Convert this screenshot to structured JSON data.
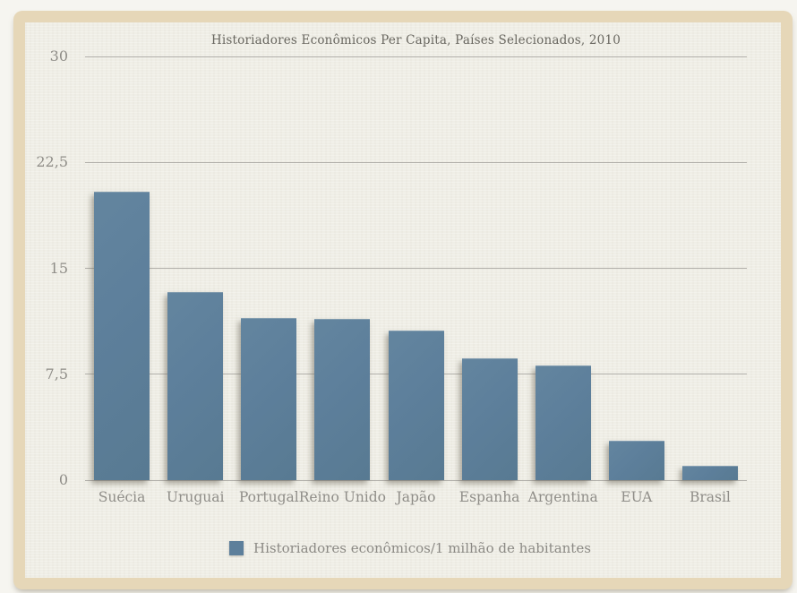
{
  "chart_data": {
    "type": "bar",
    "title": "Historiadores Econômicos Per Capita, Países Selecionados, 2010",
    "categories": [
      "Suécia",
      "Uruguai",
      "Portugal",
      "Reino Unido",
      "Japão",
      "Espanha",
      "Argentina",
      "EUA",
      "Brasil"
    ],
    "values": [
      20.4,
      13.3,
      11.5,
      11.4,
      10.6,
      8.6,
      8.1,
      2.8,
      1.0
    ],
    "series_name": "Historiadores econômicos/1 milhão de habitantes",
    "xlabel": "",
    "ylabel": "",
    "ylim": [
      0,
      30
    ],
    "yticks": [
      0,
      7.5,
      15,
      22.5,
      30
    ],
    "ytick_labels": [
      "0",
      "7,5",
      "15",
      "22,5",
      "30"
    ],
    "grid": true,
    "legend_position": "bottom",
    "colors": {
      "bar": "#5d7f9b",
      "gridline": "#b2b0ab",
      "tick_label": "#8f8d88",
      "title": "#68665f",
      "frame": "#e6d7b8",
      "paper": "#efeee6",
      "outer_background": "#f6f5f0"
    }
  }
}
